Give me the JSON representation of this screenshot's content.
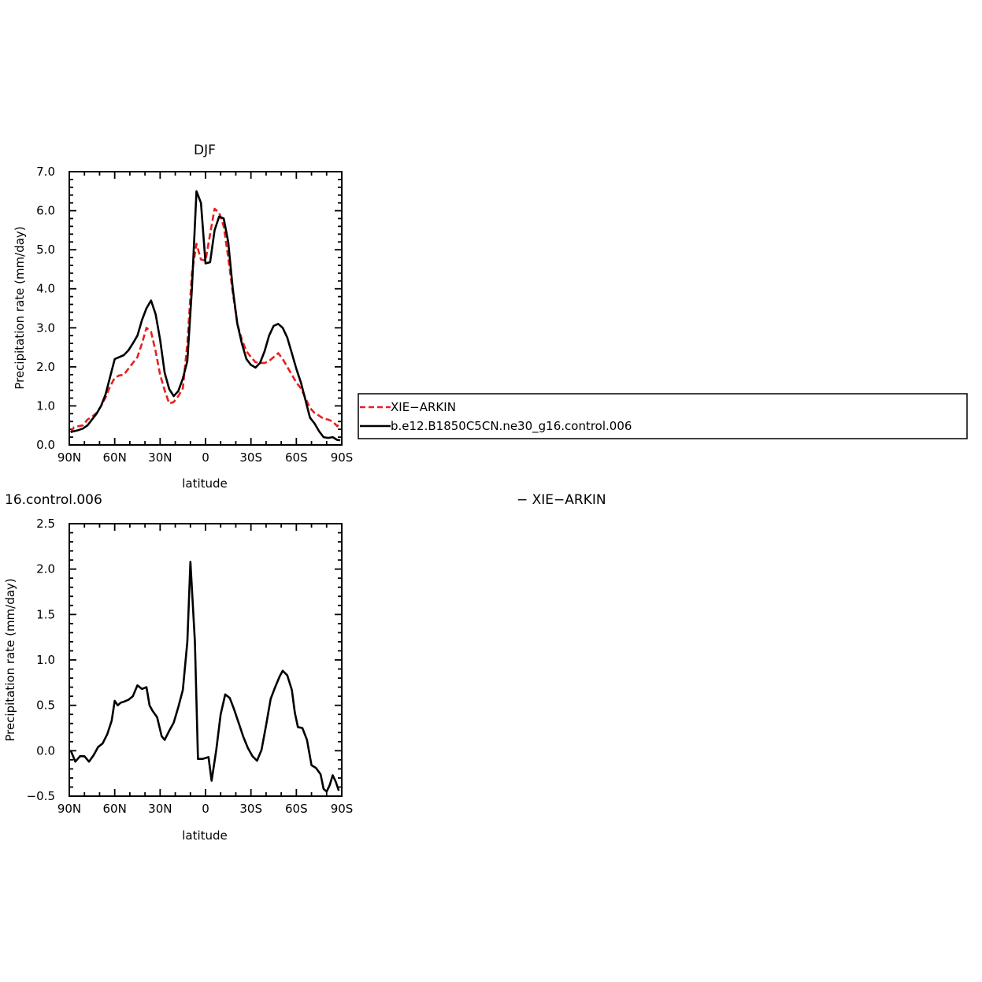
{
  "chart_data": [
    {
      "type": "line",
      "title": "DJF",
      "xlabel": "latitude",
      "ylabel": "Precipitation rate (mm/day)",
      "xlim": [
        90,
        -90
      ],
      "ylim": [
        0.0,
        7.0
      ],
      "x_ticks": [
        {
          "v": 90,
          "label": "90N"
        },
        {
          "v": 60,
          "label": "60N"
        },
        {
          "v": 30,
          "label": "30N"
        },
        {
          "v": 0,
          "label": "0"
        },
        {
          "v": -30,
          "label": "30S"
        },
        {
          "v": -60,
          "label": "60S"
        },
        {
          "v": -90,
          "label": "90S"
        }
      ],
      "y_ticks": [
        {
          "v": 0.0,
          "label": "0.0"
        },
        {
          "v": 1.0,
          "label": "1.0"
        },
        {
          "v": 2.0,
          "label": "2.0"
        },
        {
          "v": 3.0,
          "label": "3.0"
        },
        {
          "v": 4.0,
          "label": "4.0"
        },
        {
          "v": 5.0,
          "label": "5.0"
        },
        {
          "v": 6.0,
          "label": "6.0"
        },
        {
          "v": 7.0,
          "label": "7.0"
        }
      ],
      "legend": "right",
      "series": [
        {
          "name": "XIE−ARKIN",
          "color": "#e8201e",
          "dash": "dashed",
          "x": [
            89,
            87,
            84,
            81,
            78,
            75,
            72,
            69,
            66,
            63,
            60,
            57,
            54,
            51,
            48,
            45,
            42,
            39,
            36,
            33,
            30,
            27,
            24,
            21,
            18,
            15,
            12,
            9,
            6,
            3,
            0,
            -3,
            -6,
            -9,
            -12,
            -15,
            -18,
            -21,
            -24,
            -27,
            -30,
            -33,
            -36,
            -39,
            -42,
            -45,
            -48,
            -51,
            -54,
            -57,
            -60,
            -63,
            -66,
            -69,
            -72,
            -75,
            -78,
            -81,
            -84,
            -87,
            -89
          ],
          "y": [
            0.32,
            0.45,
            0.48,
            0.5,
            0.65,
            0.72,
            0.82,
            1.0,
            1.22,
            1.5,
            1.72,
            1.78,
            1.8,
            1.95,
            2.1,
            2.25,
            2.6,
            3.0,
            2.9,
            2.4,
            1.8,
            1.4,
            1.06,
            1.1,
            1.25,
            1.45,
            2.6,
            4.4,
            5.15,
            4.75,
            4.72,
            5.4,
            6.05,
            5.95,
            5.6,
            4.8,
            3.9,
            3.1,
            2.7,
            2.4,
            2.25,
            2.12,
            2.1,
            2.1,
            2.15,
            2.25,
            2.35,
            2.2,
            2.0,
            1.8,
            1.6,
            1.45,
            1.2,
            0.95,
            0.82,
            0.75,
            0.67,
            0.65,
            0.6,
            0.48,
            0.56
          ]
        },
        {
          "name": "b.e12.B1850C5CN.ne30_g16.control.006",
          "color": "#000000",
          "dash": "solid",
          "x": [
            89,
            87,
            84,
            81,
            78,
            75,
            72,
            69,
            66,
            63,
            60,
            57,
            54,
            51,
            48,
            45,
            42,
            39,
            36,
            33,
            30,
            27,
            24,
            21,
            18,
            15,
            12,
            9,
            6,
            3,
            0,
            -3,
            -6,
            -9,
            -12,
            -15,
            -18,
            -21,
            -24,
            -27,
            -30,
            -33,
            -36,
            -39,
            -42,
            -45,
            -48,
            -51,
            -54,
            -57,
            -60,
            -63,
            -66,
            -69,
            -72,
            -75,
            -78,
            -81,
            -84,
            -87,
            -89
          ],
          "y": [
            0.33,
            0.35,
            0.38,
            0.42,
            0.5,
            0.65,
            0.8,
            1.0,
            1.3,
            1.75,
            2.2,
            2.25,
            2.3,
            2.42,
            2.6,
            2.8,
            3.2,
            3.5,
            3.7,
            3.35,
            2.7,
            1.85,
            1.43,
            1.25,
            1.38,
            1.7,
            2.15,
            4.0,
            6.5,
            6.2,
            4.65,
            4.68,
            5.5,
            5.85,
            5.8,
            5.2,
            4.0,
            3.1,
            2.6,
            2.2,
            2.05,
            1.98,
            2.1,
            2.4,
            2.8,
            3.05,
            3.1,
            3.0,
            2.75,
            2.35,
            1.95,
            1.6,
            1.15,
            0.7,
            0.55,
            0.35,
            0.2,
            0.18,
            0.2,
            0.13,
            0.12
          ]
        }
      ]
    },
    {
      "type": "line",
      "title": "16.control.006",
      "title_right": "− XIE−ARKIN",
      "xlabel": "latitude",
      "ylabel": "Precipitation rate (mm/day)",
      "xlim": [
        90,
        -90
      ],
      "ylim": [
        -0.5,
        2.5
      ],
      "x_ticks": [
        {
          "v": 90,
          "label": "90N"
        },
        {
          "v": 60,
          "label": "60N"
        },
        {
          "v": 30,
          "label": "30N"
        },
        {
          "v": 0,
          "label": "0"
        },
        {
          "v": -30,
          "label": "30S"
        },
        {
          "v": -60,
          "label": "60S"
        },
        {
          "v": -90,
          "label": "90S"
        }
      ],
      "y_ticks": [
        {
          "v": -0.5,
          "label": "−0.5"
        },
        {
          "v": 0.0,
          "label": "0.0"
        },
        {
          "v": 0.5,
          "label": "0.5"
        },
        {
          "v": 1.0,
          "label": "1.0"
        },
        {
          "v": 1.5,
          "label": "1.5"
        },
        {
          "v": 2.0,
          "label": "2.0"
        },
        {
          "v": 2.5,
          "label": "2.5"
        }
      ],
      "series": [
        {
          "color": "#000000",
          "dash": "solid",
          "x": [
            89,
            86,
            83,
            80,
            77,
            74,
            71,
            68,
            65,
            62,
            60,
            58,
            56,
            54,
            51,
            48,
            45,
            42,
            39,
            37,
            35,
            32,
            29,
            27,
            24,
            21,
            18,
            15,
            12,
            10,
            7,
            5,
            2,
            -2,
            -4,
            -7,
            -10,
            -13,
            -16,
            -19,
            -22,
            -25,
            -28,
            -31,
            -34,
            -37,
            -40,
            -43,
            -46,
            -49,
            -51,
            -54,
            -57,
            -59,
            -61,
            -64,
            -67,
            -70,
            -73,
            -76,
            -78,
            -80,
            -82,
            -84,
            -86,
            -88
          ],
          "y": [
            0.0,
            -0.12,
            -0.06,
            -0.06,
            -0.12,
            -0.05,
            0.04,
            0.08,
            0.18,
            0.33,
            0.55,
            0.5,
            0.53,
            0.54,
            0.56,
            0.6,
            0.72,
            0.68,
            0.7,
            0.5,
            0.44,
            0.37,
            0.16,
            0.12,
            0.22,
            0.31,
            0.48,
            0.67,
            1.2,
            2.08,
            1.2,
            -0.09,
            -0.09,
            -0.07,
            -0.33,
            0.0,
            0.4,
            0.62,
            0.58,
            0.45,
            0.3,
            0.15,
            0.03,
            -0.06,
            -0.11,
            0.01,
            0.28,
            0.57,
            0.7,
            0.82,
            0.88,
            0.83,
            0.67,
            0.42,
            0.26,
            0.25,
            0.12,
            -0.16,
            -0.19,
            -0.26,
            -0.42,
            -0.45,
            -0.38,
            -0.27,
            -0.34,
            -0.44
          ]
        }
      ]
    }
  ]
}
